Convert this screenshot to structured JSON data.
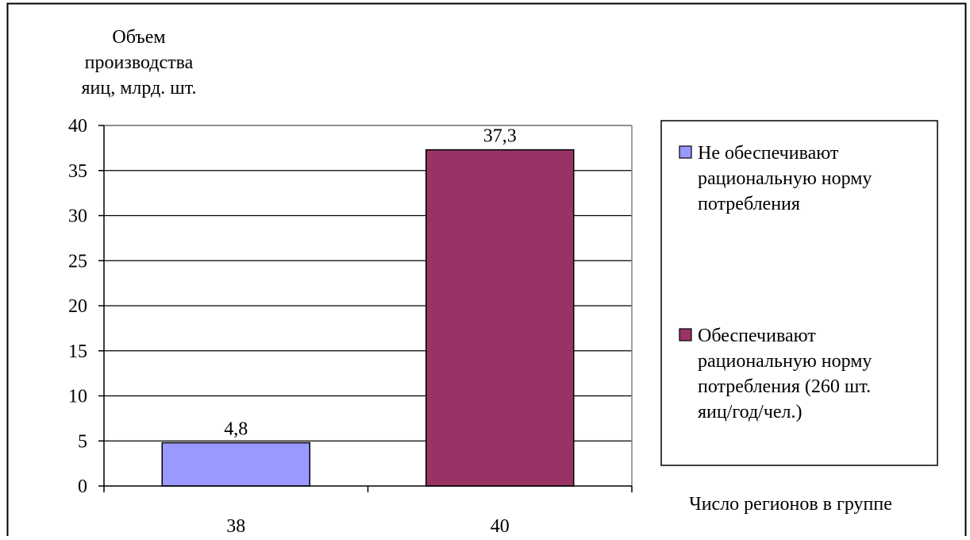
{
  "chart_data": {
    "type": "bar",
    "ylabel_lines": [
      "Объем",
      "производства",
      "яиц, млрд. шт."
    ],
    "xlabel": "Число регионов в группе",
    "categories": [
      "38",
      "40"
    ],
    "series": [
      {
        "name_lines": [
          "Не обеспечивают",
          "рациональную норму",
          "потребления"
        ],
        "value": 4.8,
        "value_label": "4,8",
        "category_index": 0,
        "color": "#9999ff"
      },
      {
        "name_lines": [
          "Обеспечивают",
          "рациональную норму",
          "потребления (260 шт.",
          "яиц/год/чел.)"
        ],
        "value": 37.3,
        "value_label": "37,3",
        "category_index": 1,
        "color": "#993366"
      }
    ],
    "ylim": [
      0,
      40
    ],
    "yticks": [
      0,
      5,
      10,
      15,
      20,
      25,
      30,
      35,
      40
    ],
    "grid": true,
    "legend_position": "right"
  }
}
